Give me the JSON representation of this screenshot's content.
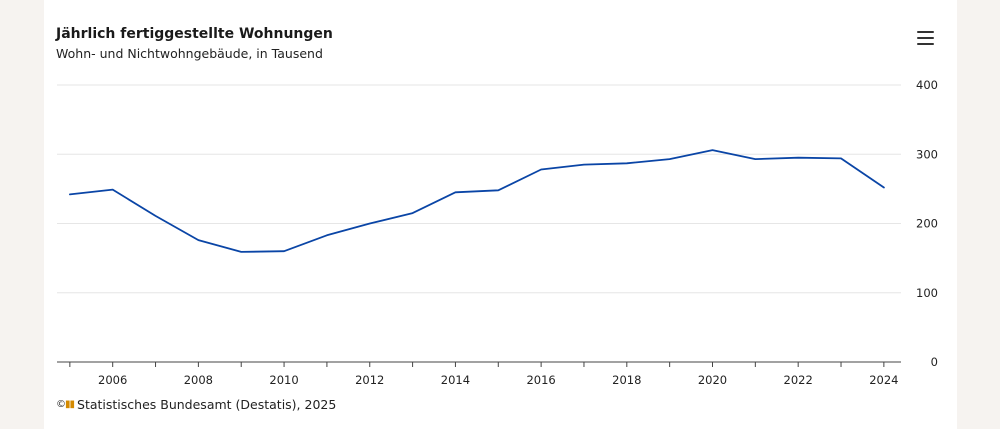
{
  "header": {
    "title": "Jährlich fertiggestellte Wohnungen",
    "subtitle": "Wohn- und Nichtwohngebäude, in Tausend"
  },
  "menu_icon": "hamburger-menu-icon",
  "footer": {
    "logo_text": "©",
    "source": "Statistisches Bundesamt (Destatis), 2025"
  },
  "colors": {
    "line": "#0a45a6",
    "grid": "#e6e6e6",
    "axis": "#444444"
  },
  "chart_data": {
    "type": "line",
    "title": "Jährlich fertiggestellte Wohnungen",
    "subtitle": "Wohn- und Nichtwohngebäude, in Tausend",
    "x": [
      2005,
      2006,
      2007,
      2008,
      2009,
      2010,
      2011,
      2012,
      2013,
      2014,
      2015,
      2016,
      2017,
      2018,
      2019,
      2020,
      2021,
      2022,
      2023,
      2024
    ],
    "series": [
      {
        "values": [
          242,
          249,
          211,
          176,
          159,
          160,
          183,
          200,
          215,
          245,
          248,
          278,
          285,
          287,
          293,
          306,
          293,
          295,
          294,
          252
        ]
      }
    ],
    "xlim": [
      2004.7,
      2024.4
    ],
    "ylim": [
      0,
      400
    ],
    "x_ticks": [
      2006,
      2008,
      2010,
      2012,
      2014,
      2016,
      2018,
      2020,
      2022,
      2024
    ],
    "y_ticks": [
      0,
      100,
      200,
      300,
      400
    ],
    "y_axis_position": "right",
    "grid": true,
    "legend": "none"
  }
}
